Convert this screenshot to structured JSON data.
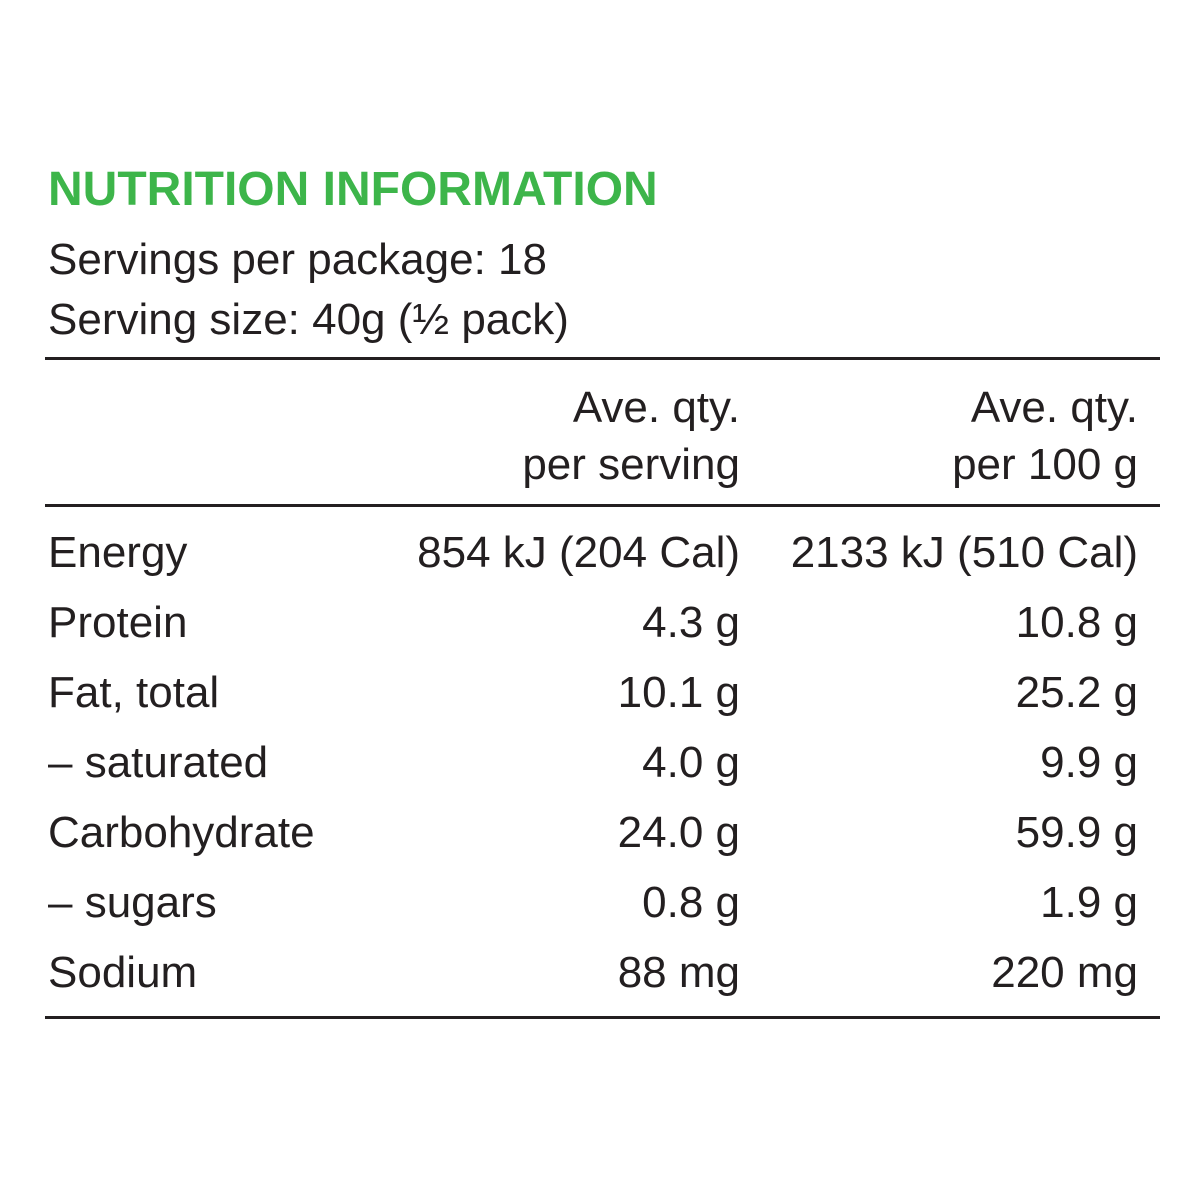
{
  "title": "NUTRITION INFORMATION",
  "servings_per_package": "Servings per package: 18",
  "serving_size": "Serving size: 40g (½ pack)",
  "table": {
    "header": [
      [
        "Ave. qty.",
        "per serving"
      ],
      [
        "Ave. qty.",
        "per 100 g"
      ]
    ],
    "rows": [
      [
        "Energy",
        "854 kJ (204 Cal)",
        "2133 kJ (510 Cal)"
      ],
      [
        "Protein",
        "4.3 g",
        "10.8 g"
      ],
      [
        "Fat, total",
        "10.1 g",
        "25.2 g"
      ],
      [
        "– saturated",
        "4.0 g",
        "9.9 g"
      ],
      [
        "Carbohydrate",
        "24.0 g",
        "59.9 g"
      ],
      [
        "– sugars",
        "0.8 g",
        "1.9 g"
      ],
      [
        "Sodium",
        "88 mg",
        "220 mg"
      ]
    ]
  }
}
